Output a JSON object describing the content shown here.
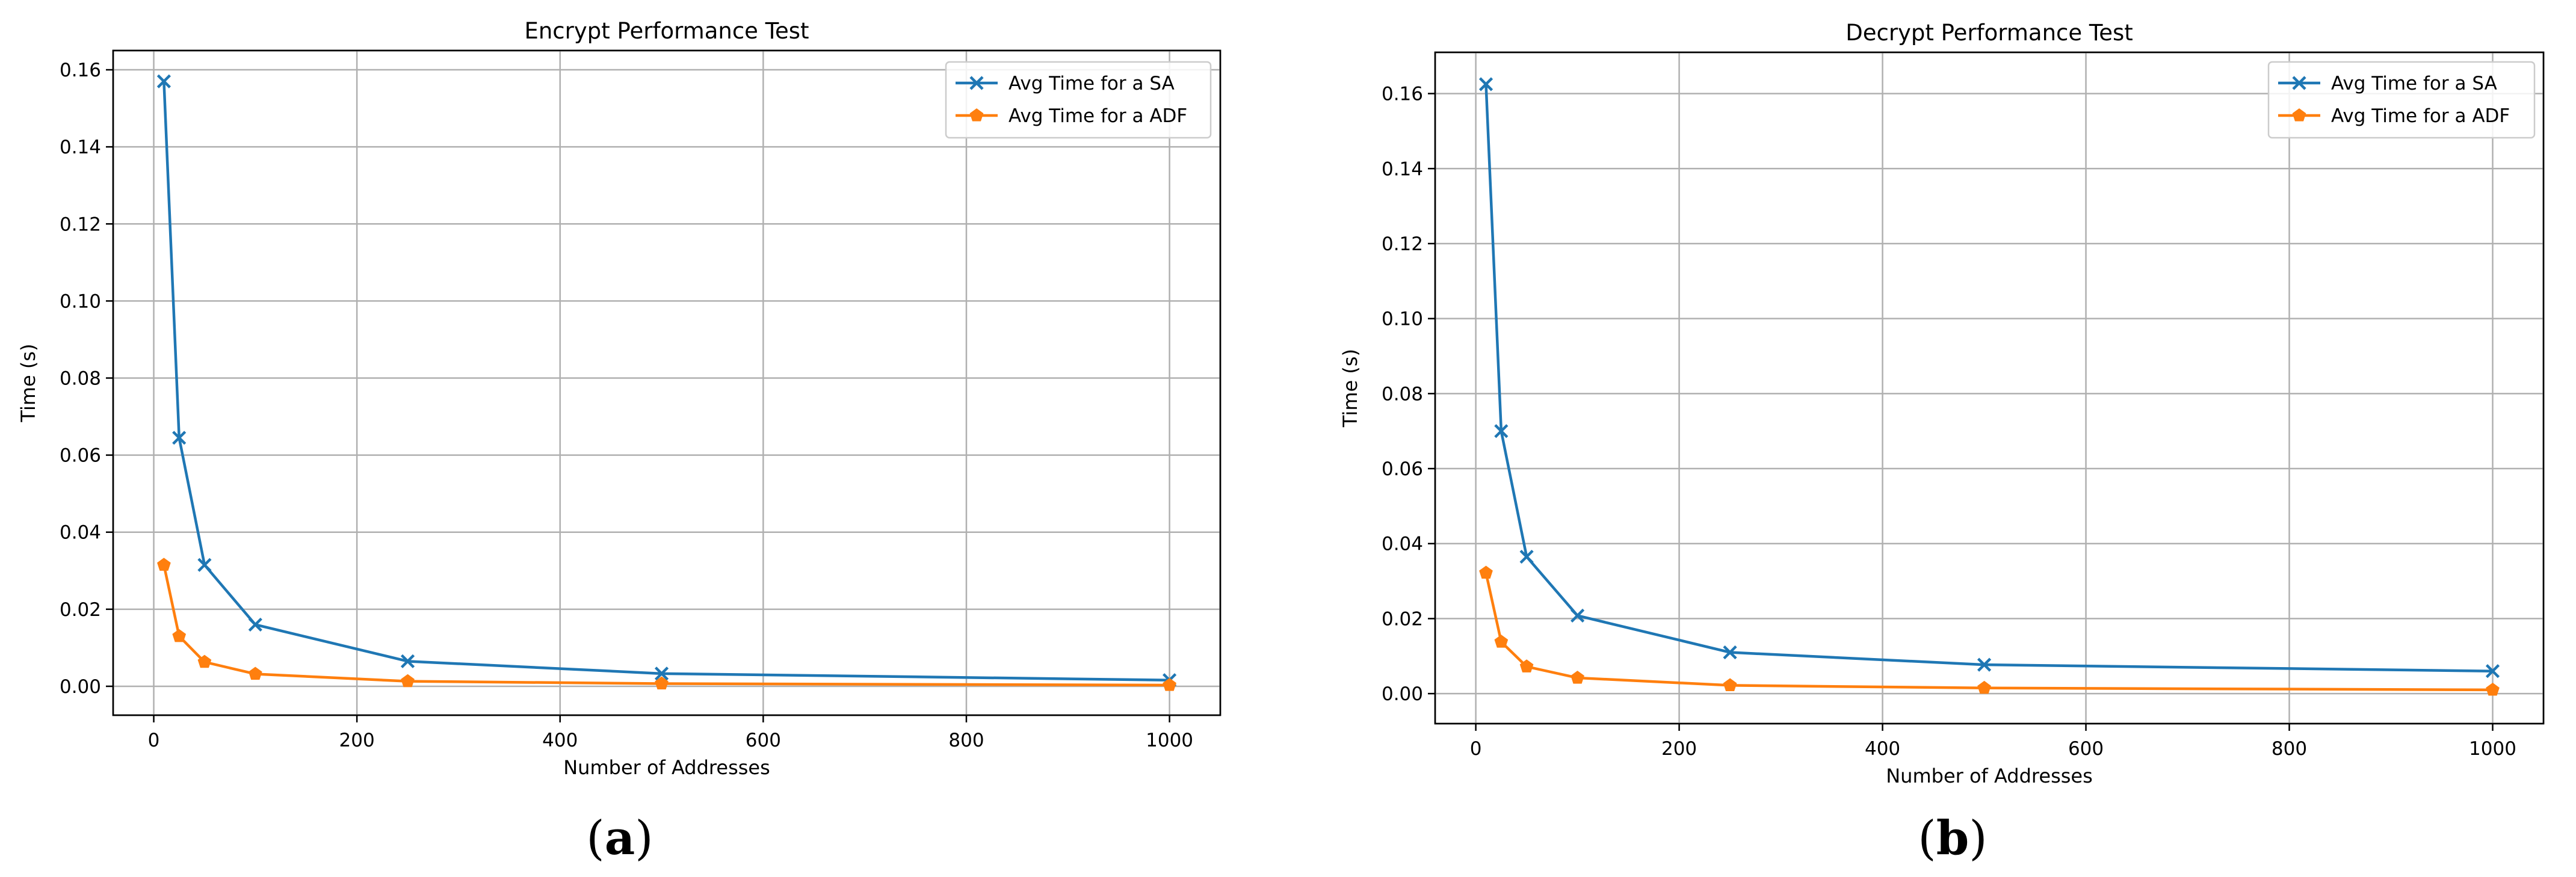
{
  "chart_data": [
    {
      "type": "line",
      "title": "Encrypt Performance Test",
      "xlabel": "Number of Addresses",
      "ylabel": "Time (s)",
      "x": [
        10,
        25,
        50,
        100,
        250,
        500,
        1000
      ],
      "xlim": [
        -40,
        1050
      ],
      "ylim": [
        -0.0075,
        0.165
      ],
      "xticks": [
        0,
        200,
        400,
        600,
        800,
        1000
      ],
      "yticks": [
        0.0,
        0.02,
        0.04,
        0.06,
        0.08,
        0.1,
        0.12,
        0.14,
        0.16
      ],
      "ytick_labels": [
        "0.00",
        "0.02",
        "0.04",
        "0.06",
        "0.08",
        "0.10",
        "0.12",
        "0.14",
        "0.16"
      ],
      "grid": true,
      "legend_position": "upper-right",
      "series": [
        {
          "name": "Avg Time for a SA",
          "color": "#1f77b4",
          "marker": "x",
          "values": [
            0.157,
            0.0645,
            0.0315,
            0.016,
            0.0065,
            0.0033,
            0.0016
          ]
        },
        {
          "name": "Avg Time for a ADF",
          "color": "#ff7f0e",
          "marker": "pentagon",
          "values": [
            0.0315,
            0.013,
            0.0063,
            0.0032,
            0.0013,
            0.0007,
            0.0003
          ]
        }
      ],
      "caption_letter": "a"
    },
    {
      "type": "line",
      "title": "Decrypt Performance Test",
      "xlabel": "Number of Addresses",
      "ylabel": "Time (s)",
      "x": [
        10,
        25,
        50,
        100,
        250,
        500,
        1000
      ],
      "xlim": [
        -40,
        1050
      ],
      "ylim": [
        -0.008,
        0.171
      ],
      "xticks": [
        0,
        200,
        400,
        600,
        800,
        1000
      ],
      "yticks": [
        0.0,
        0.02,
        0.04,
        0.06,
        0.08,
        0.1,
        0.12,
        0.14,
        0.16
      ],
      "ytick_labels": [
        "0.00",
        "0.02",
        "0.04",
        "0.06",
        "0.08",
        "0.10",
        "0.12",
        "0.14",
        "0.16"
      ],
      "grid": true,
      "legend_position": "upper-right",
      "series": [
        {
          "name": "Avg Time for a SA",
          "color": "#1f77b4",
          "marker": "x",
          "values": [
            0.1625,
            0.07,
            0.0365,
            0.0208,
            0.011,
            0.0077,
            0.006
          ]
        },
        {
          "name": "Avg Time for a ADF",
          "color": "#ff7f0e",
          "marker": "pentagon",
          "values": [
            0.0322,
            0.0138,
            0.0072,
            0.0042,
            0.0022,
            0.0015,
            0.001
          ]
        }
      ],
      "caption_letter": "b"
    }
  ]
}
